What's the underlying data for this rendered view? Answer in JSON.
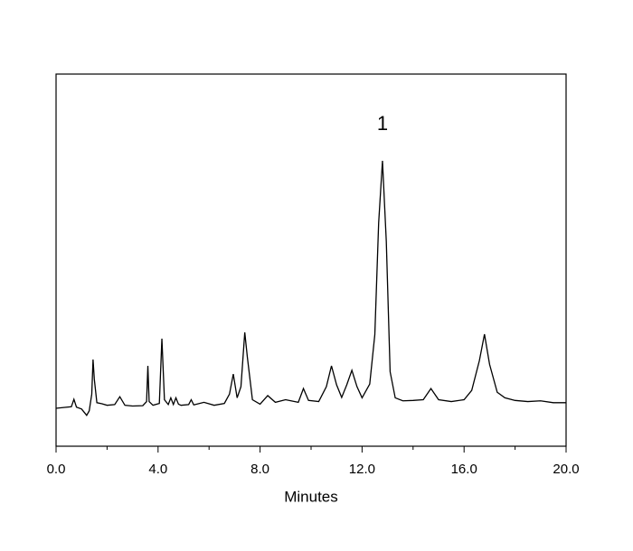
{
  "chart_data": {
    "type": "line",
    "xlabel": "Minutes",
    "annotations": [
      {
        "text": "1"
      }
    ],
    "color": "#000000",
    "xlim": [
      0,
      20
    ],
    "ylim": [
      0,
      100
    ],
    "xticks": [
      {
        "value": 0,
        "label": "0.0"
      },
      {
        "value": 4,
        "label": "4.0"
      },
      {
        "value": 8,
        "label": "8.0"
      },
      {
        "value": 12,
        "label": "12.0"
      },
      {
        "value": 16,
        "label": "16.0"
      },
      {
        "value": 20,
        "label": "20.0"
      }
    ],
    "x": [
      0,
      0.3,
      0.6,
      0.7,
      0.8,
      1.0,
      1.2,
      1.3,
      1.4,
      1.45,
      1.5,
      1.6,
      1.8,
      2.0,
      2.3,
      2.5,
      2.7,
      3.0,
      3.4,
      3.55,
      3.6,
      3.65,
      3.8,
      4.05,
      4.15,
      4.25,
      4.4,
      4.5,
      4.6,
      4.7,
      4.8,
      4.9,
      5.2,
      5.3,
      5.4,
      5.8,
      6.2,
      6.6,
      6.8,
      6.95,
      7.1,
      7.25,
      7.4,
      7.5,
      7.7,
      8.0,
      8.3,
      8.6,
      9.0,
      9.5,
      9.7,
      9.9,
      10.3,
      10.6,
      10.8,
      11.0,
      11.2,
      11.4,
      11.6,
      11.8,
      12.0,
      12.3,
      12.5,
      12.65,
      12.8,
      12.95,
      13.1,
      13.3,
      13.6,
      14.0,
      14.4,
      14.7,
      15.0,
      15.5,
      16.0,
      16.3,
      16.6,
      16.8,
      17.0,
      17.3,
      17.6,
      18.0,
      18.5,
      19.0,
      19.5,
      20.0
    ],
    "series": [
      {
        "values": [
          10.2,
          10.4,
          10.6,
          12.6,
          10.5,
          10.0,
          8.3,
          9.5,
          14.0,
          23.3,
          18.0,
          11.7,
          11.4,
          11.0,
          11.2,
          13.3,
          11.0,
          10.8,
          10.9,
          12.0,
          21.6,
          12.0,
          11.0,
          11.5,
          28.9,
          12.5,
          11.2,
          13.0,
          11.2,
          13.0,
          11.3,
          11.0,
          11.2,
          12.5,
          11.1,
          11.8,
          11.0,
          11.5,
          14.0,
          19.4,
          13.0,
          16.0,
          30.6,
          24.0,
          12.5,
          11.3,
          13.6,
          11.8,
          12.5,
          11.8,
          15.5,
          12.3,
          12.0,
          16.0,
          21.6,
          16.5,
          13.1,
          16.5,
          20.4,
          16.0,
          13.0,
          16.7,
          30.0,
          60.0,
          76.7,
          55.0,
          20.0,
          13.0,
          12.2,
          12.3,
          12.5,
          15.5,
          12.5,
          12.0,
          12.5,
          15.0,
          23.0,
          30.1,
          22.0,
          14.5,
          13.0,
          12.3,
          12.0,
          12.2,
          11.7,
          11.7
        ]
      }
    ]
  }
}
